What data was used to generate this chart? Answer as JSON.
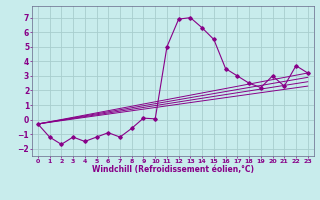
{
  "xlabel": "Windchill (Refroidissement éolien,°C)",
  "background_color": "#c8ecec",
  "grid_color": "#a8cece",
  "line_color": "#880088",
  "xlim": [
    -0.5,
    23.5
  ],
  "ylim": [
    -2.5,
    7.8
  ],
  "xticks": [
    0,
    1,
    2,
    3,
    4,
    5,
    6,
    7,
    8,
    9,
    10,
    11,
    12,
    13,
    14,
    15,
    16,
    17,
    18,
    19,
    20,
    21,
    22,
    23
  ],
  "yticks": [
    -2,
    -1,
    0,
    1,
    2,
    3,
    4,
    5,
    6,
    7
  ],
  "main_series": [
    [
      0,
      -0.3
    ],
    [
      1,
      -1.2
    ],
    [
      2,
      -1.7
    ],
    [
      3,
      -1.2
    ],
    [
      4,
      -1.5
    ],
    [
      5,
      -1.2
    ],
    [
      6,
      -0.9
    ],
    [
      7,
      -1.2
    ],
    [
      8,
      -0.6
    ],
    [
      9,
      0.1
    ],
    [
      10,
      0.05
    ],
    [
      11,
      5.0
    ],
    [
      12,
      6.9
    ],
    [
      13,
      7.0
    ],
    [
      14,
      6.3
    ],
    [
      15,
      5.5
    ],
    [
      16,
      3.5
    ],
    [
      17,
      3.0
    ],
    [
      18,
      2.5
    ],
    [
      19,
      2.2
    ],
    [
      20,
      3.0
    ],
    [
      21,
      2.3
    ],
    [
      22,
      3.7
    ],
    [
      23,
      3.2
    ]
  ],
  "linear_lines": [
    {
      "x0": 0,
      "y0": -0.3,
      "x1": 23,
      "y1": 3.2
    },
    {
      "x0": 0,
      "y0": -0.3,
      "x1": 23,
      "y1": 2.9
    },
    {
      "x0": 0,
      "y0": -0.3,
      "x1": 23,
      "y1": 2.6
    },
    {
      "x0": 0,
      "y0": -0.3,
      "x1": 23,
      "y1": 2.3
    }
  ]
}
